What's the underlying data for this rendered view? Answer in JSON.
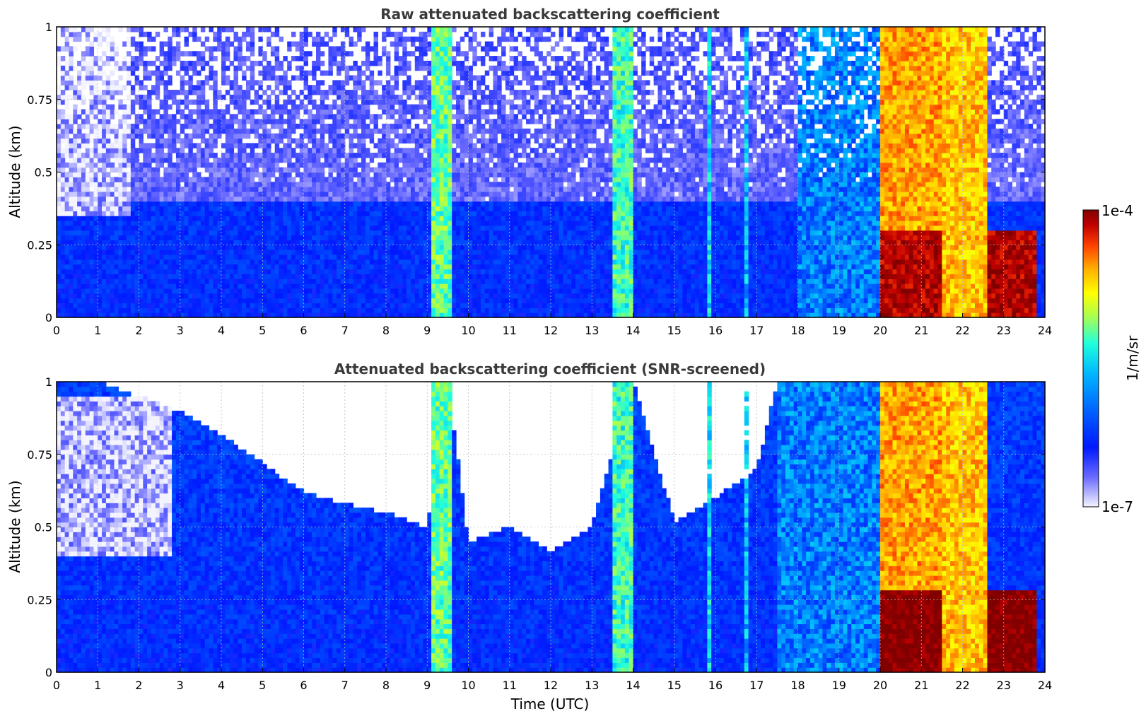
{
  "chart_data": [
    {
      "type": "heatmap",
      "title": "Raw attenuated backscattering coefficient",
      "xlabel": "",
      "ylabel": "Altitude (km)",
      "xlim": [
        0,
        24
      ],
      "ylim": [
        0,
        1
      ],
      "x_ticks": [
        "0",
        "1",
        "2",
        "3",
        "4",
        "5",
        "6",
        "7",
        "8",
        "9",
        "10",
        "11",
        "12",
        "13",
        "14",
        "15",
        "16",
        "17",
        "18",
        "19",
        "20",
        "21",
        "22",
        "23",
        "24"
      ],
      "y_ticks": [
        "0",
        "0.25",
        "0.5",
        "0.75",
        "1"
      ],
      "grid": true,
      "background_log10": -6.4,
      "boundary_layer_top_km": 0.4,
      "noise_above_boundary_layer": true,
      "features": [
        {
          "x0": 0,
          "x1": 1.8,
          "y0": 0.35,
          "y1": 1,
          "log10": -6.9
        },
        {
          "x0": 9.15,
          "x1": 9.6,
          "y0": 0,
          "y1": 1,
          "log10": -5.5
        },
        {
          "x0": 13.5,
          "x1": 14.0,
          "y0": 0,
          "y1": 1,
          "log10": -5.6
        },
        {
          "x0": 15.85,
          "x1": 15.95,
          "y0": 0,
          "y1": 1,
          "log10": -5.8
        },
        {
          "x0": 16.7,
          "x1": 16.8,
          "y0": 0,
          "y1": 1,
          "log10": -5.9
        },
        {
          "x0": 18.0,
          "x1": 20.0,
          "y0": 0,
          "y1": 1,
          "log10": -6.1
        },
        {
          "x0": 20.05,
          "x1": 21.5,
          "y0": 0,
          "y1": 0.3,
          "log10": -4.2
        },
        {
          "x0": 20.05,
          "x1": 21.5,
          "y0": 0.3,
          "y1": 1,
          "log10": -4.8
        },
        {
          "x0": 21.5,
          "x1": 22.6,
          "y0": 0,
          "y1": 1,
          "log10": -4.9
        },
        {
          "x0": 22.6,
          "x1": 23.8,
          "y0": 0,
          "y1": 0.3,
          "log10": -4.2
        }
      ]
    },
    {
      "type": "heatmap",
      "title": "Attenuated backscattering coefficient (SNR-screened)",
      "xlabel": "Time (UTC)",
      "ylabel": "Altitude (km)",
      "xlim": [
        0,
        24
      ],
      "ylim": [
        0,
        1
      ],
      "x_ticks": [
        "0",
        "1",
        "2",
        "3",
        "4",
        "5",
        "6",
        "7",
        "8",
        "9",
        "10",
        "11",
        "12",
        "13",
        "14",
        "15",
        "16",
        "17",
        "18",
        "19",
        "20",
        "21",
        "22",
        "23",
        "24"
      ],
      "y_ticks": [
        "0",
        "0.25",
        "0.5",
        "0.75",
        "1"
      ],
      "grid": true,
      "background_log10": -6.4,
      "screened_top_km": [
        [
          0,
          1.0
        ],
        [
          1,
          1.0
        ],
        [
          2,
          0.95
        ],
        [
          3,
          0.9
        ],
        [
          4,
          0.82
        ],
        [
          5,
          0.72
        ],
        [
          6,
          0.62
        ],
        [
          7,
          0.58
        ],
        [
          8,
          0.55
        ],
        [
          9,
          0.5
        ],
        [
          9.5,
          1.0
        ],
        [
          10,
          0.45
        ],
        [
          11,
          0.5
        ],
        [
          12,
          0.42
        ],
        [
          13,
          0.5
        ],
        [
          14,
          1.0
        ],
        [
          15,
          0.52
        ],
        [
          16,
          0.6
        ],
        [
          17,
          0.7
        ],
        [
          17.5,
          1.0
        ],
        [
          24,
          1.0
        ]
      ],
      "features": [
        {
          "x0": 0,
          "x1": 2.8,
          "y0": 0.4,
          "y1": 0.95,
          "log10": -6.9
        },
        {
          "x0": 9.15,
          "x1": 9.6,
          "y0": 0,
          "y1": 1,
          "log10": -5.5
        },
        {
          "x0": 13.5,
          "x1": 14.0,
          "y0": 0,
          "y1": 1,
          "log10": -5.6
        },
        {
          "x0": 15.85,
          "x1": 15.95,
          "y0": 0,
          "y1": 1,
          "log10": -5.8
        },
        {
          "x0": 16.7,
          "x1": 16.8,
          "y0": 0,
          "y1": 1,
          "log10": -5.9
        },
        {
          "x0": 17.5,
          "x1": 20.0,
          "y0": 0,
          "y1": 1,
          "log10": -6.1
        },
        {
          "x0": 20.05,
          "x1": 21.5,
          "y0": 0,
          "y1": 0.28,
          "log10": -4.0
        },
        {
          "x0": 20.05,
          "x1": 21.5,
          "y0": 0.28,
          "y1": 1,
          "log10": -4.8
        },
        {
          "x0": 21.5,
          "x1": 22.6,
          "y0": 0,
          "y1": 1,
          "log10": -4.9
        },
        {
          "x0": 22.6,
          "x1": 23.8,
          "y0": 0,
          "y1": 0.28,
          "log10": -4.0
        }
      ]
    }
  ],
  "colorbar": {
    "label": "1/m/sr",
    "max_label": "1e-4",
    "min_label": "1e-7",
    "range_log10": [
      -7,
      -4
    ],
    "colormap": "jet",
    "colors": [
      "#f4f4ff",
      "#6a6aff",
      "#0018ff",
      "#0060ff",
      "#00b8ff",
      "#20ffdc",
      "#a8ff50",
      "#ffff00",
      "#ffb000",
      "#ff4000",
      "#c00000",
      "#800000"
    ]
  }
}
